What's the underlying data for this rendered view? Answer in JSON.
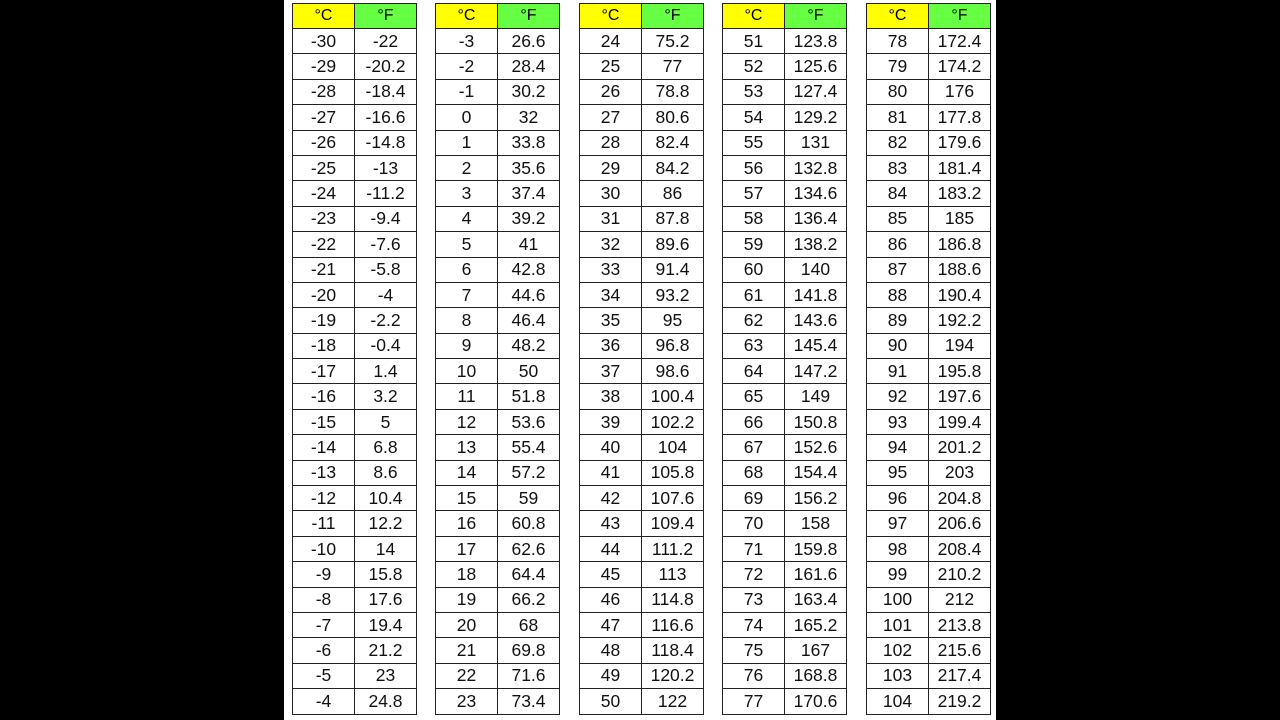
{
  "headers": {
    "celsius": "°C",
    "fahrenheit": "°F"
  },
  "colors": {
    "celsius_header": "#ffff00",
    "fahrenheit_header": "#66ff44"
  },
  "tables": [
    {
      "rows": [
        [
          "-30",
          "-22"
        ],
        [
          "-29",
          "-20.2"
        ],
        [
          "-28",
          "-18.4"
        ],
        [
          "-27",
          "-16.6"
        ],
        [
          "-26",
          "-14.8"
        ],
        [
          "-25",
          "-13"
        ],
        [
          "-24",
          "-11.2"
        ],
        [
          "-23",
          "-9.4"
        ],
        [
          "-22",
          "-7.6"
        ],
        [
          "-21",
          "-5.8"
        ],
        [
          "-20",
          "-4"
        ],
        [
          "-19",
          "-2.2"
        ],
        [
          "-18",
          "-0.4"
        ],
        [
          "-17",
          "1.4"
        ],
        [
          "-16",
          "3.2"
        ],
        [
          "-15",
          "5"
        ],
        [
          "-14",
          "6.8"
        ],
        [
          "-13",
          "8.6"
        ],
        [
          "-12",
          "10.4"
        ],
        [
          "-11",
          "12.2"
        ],
        [
          "-10",
          "14"
        ],
        [
          "-9",
          "15.8"
        ],
        [
          "-8",
          "17.6"
        ],
        [
          "-7",
          "19.4"
        ],
        [
          "-6",
          "21.2"
        ],
        [
          "-5",
          "23"
        ],
        [
          "-4",
          "24.8"
        ]
      ]
    },
    {
      "rows": [
        [
          "-3",
          "26.6"
        ],
        [
          "-2",
          "28.4"
        ],
        [
          "-1",
          "30.2"
        ],
        [
          "0",
          "32"
        ],
        [
          "1",
          "33.8"
        ],
        [
          "2",
          "35.6"
        ],
        [
          "3",
          "37.4"
        ],
        [
          "4",
          "39.2"
        ],
        [
          "5",
          "41"
        ],
        [
          "6",
          "42.8"
        ],
        [
          "7",
          "44.6"
        ],
        [
          "8",
          "46.4"
        ],
        [
          "9",
          "48.2"
        ],
        [
          "10",
          "50"
        ],
        [
          "11",
          "51.8"
        ],
        [
          "12",
          "53.6"
        ],
        [
          "13",
          "55.4"
        ],
        [
          "14",
          "57.2"
        ],
        [
          "15",
          "59"
        ],
        [
          "16",
          "60.8"
        ],
        [
          "17",
          "62.6"
        ],
        [
          "18",
          "64.4"
        ],
        [
          "19",
          "66.2"
        ],
        [
          "20",
          "68"
        ],
        [
          "21",
          "69.8"
        ],
        [
          "22",
          "71.6"
        ],
        [
          "23",
          "73.4"
        ]
      ]
    },
    {
      "rows": [
        [
          "24",
          "75.2"
        ],
        [
          "25",
          "77"
        ],
        [
          "26",
          "78.8"
        ],
        [
          "27",
          "80.6"
        ],
        [
          "28",
          "82.4"
        ],
        [
          "29",
          "84.2"
        ],
        [
          "30",
          "86"
        ],
        [
          "31",
          "87.8"
        ],
        [
          "32",
          "89.6"
        ],
        [
          "33",
          "91.4"
        ],
        [
          "34",
          "93.2"
        ],
        [
          "35",
          "95"
        ],
        [
          "36",
          "96.8"
        ],
        [
          "37",
          "98.6"
        ],
        [
          "38",
          "100.4"
        ],
        [
          "39",
          "102.2"
        ],
        [
          "40",
          "104"
        ],
        [
          "41",
          "105.8"
        ],
        [
          "42",
          "107.6"
        ],
        [
          "43",
          "109.4"
        ],
        [
          "44",
          "111.2"
        ],
        [
          "45",
          "113"
        ],
        [
          "46",
          "114.8"
        ],
        [
          "47",
          "116.6"
        ],
        [
          "48",
          "118.4"
        ],
        [
          "49",
          "120.2"
        ],
        [
          "50",
          "122"
        ]
      ]
    },
    {
      "rows": [
        [
          "51",
          "123.8"
        ],
        [
          "52",
          "125.6"
        ],
        [
          "53",
          "127.4"
        ],
        [
          "54",
          "129.2"
        ],
        [
          "55",
          "131"
        ],
        [
          "56",
          "132.8"
        ],
        [
          "57",
          "134.6"
        ],
        [
          "58",
          "136.4"
        ],
        [
          "59",
          "138.2"
        ],
        [
          "60",
          "140"
        ],
        [
          "61",
          "141.8"
        ],
        [
          "62",
          "143.6"
        ],
        [
          "63",
          "145.4"
        ],
        [
          "64",
          "147.2"
        ],
        [
          "65",
          "149"
        ],
        [
          "66",
          "150.8"
        ],
        [
          "67",
          "152.6"
        ],
        [
          "68",
          "154.4"
        ],
        [
          "69",
          "156.2"
        ],
        [
          "70",
          "158"
        ],
        [
          "71",
          "159.8"
        ],
        [
          "72",
          "161.6"
        ],
        [
          "73",
          "163.4"
        ],
        [
          "74",
          "165.2"
        ],
        [
          "75",
          "167"
        ],
        [
          "76",
          "168.8"
        ],
        [
          "77",
          "170.6"
        ]
      ]
    },
    {
      "rows": [
        [
          "78",
          "172.4"
        ],
        [
          "79",
          "174.2"
        ],
        [
          "80",
          "176"
        ],
        [
          "81",
          "177.8"
        ],
        [
          "82",
          "179.6"
        ],
        [
          "83",
          "181.4"
        ],
        [
          "84",
          "183.2"
        ],
        [
          "85",
          "185"
        ],
        [
          "86",
          "186.8"
        ],
        [
          "87",
          "188.6"
        ],
        [
          "88",
          "190.4"
        ],
        [
          "89",
          "192.2"
        ],
        [
          "90",
          "194"
        ],
        [
          "91",
          "195.8"
        ],
        [
          "92",
          "197.6"
        ],
        [
          "93",
          "199.4"
        ],
        [
          "94",
          "201.2"
        ],
        [
          "95",
          "203"
        ],
        [
          "96",
          "204.8"
        ],
        [
          "97",
          "206.6"
        ],
        [
          "98",
          "208.4"
        ],
        [
          "99",
          "210.2"
        ],
        [
          "100",
          "212"
        ],
        [
          "101",
          "213.8"
        ],
        [
          "102",
          "215.6"
        ],
        [
          "103",
          "217.4"
        ],
        [
          "104",
          "219.2"
        ]
      ]
    }
  ]
}
